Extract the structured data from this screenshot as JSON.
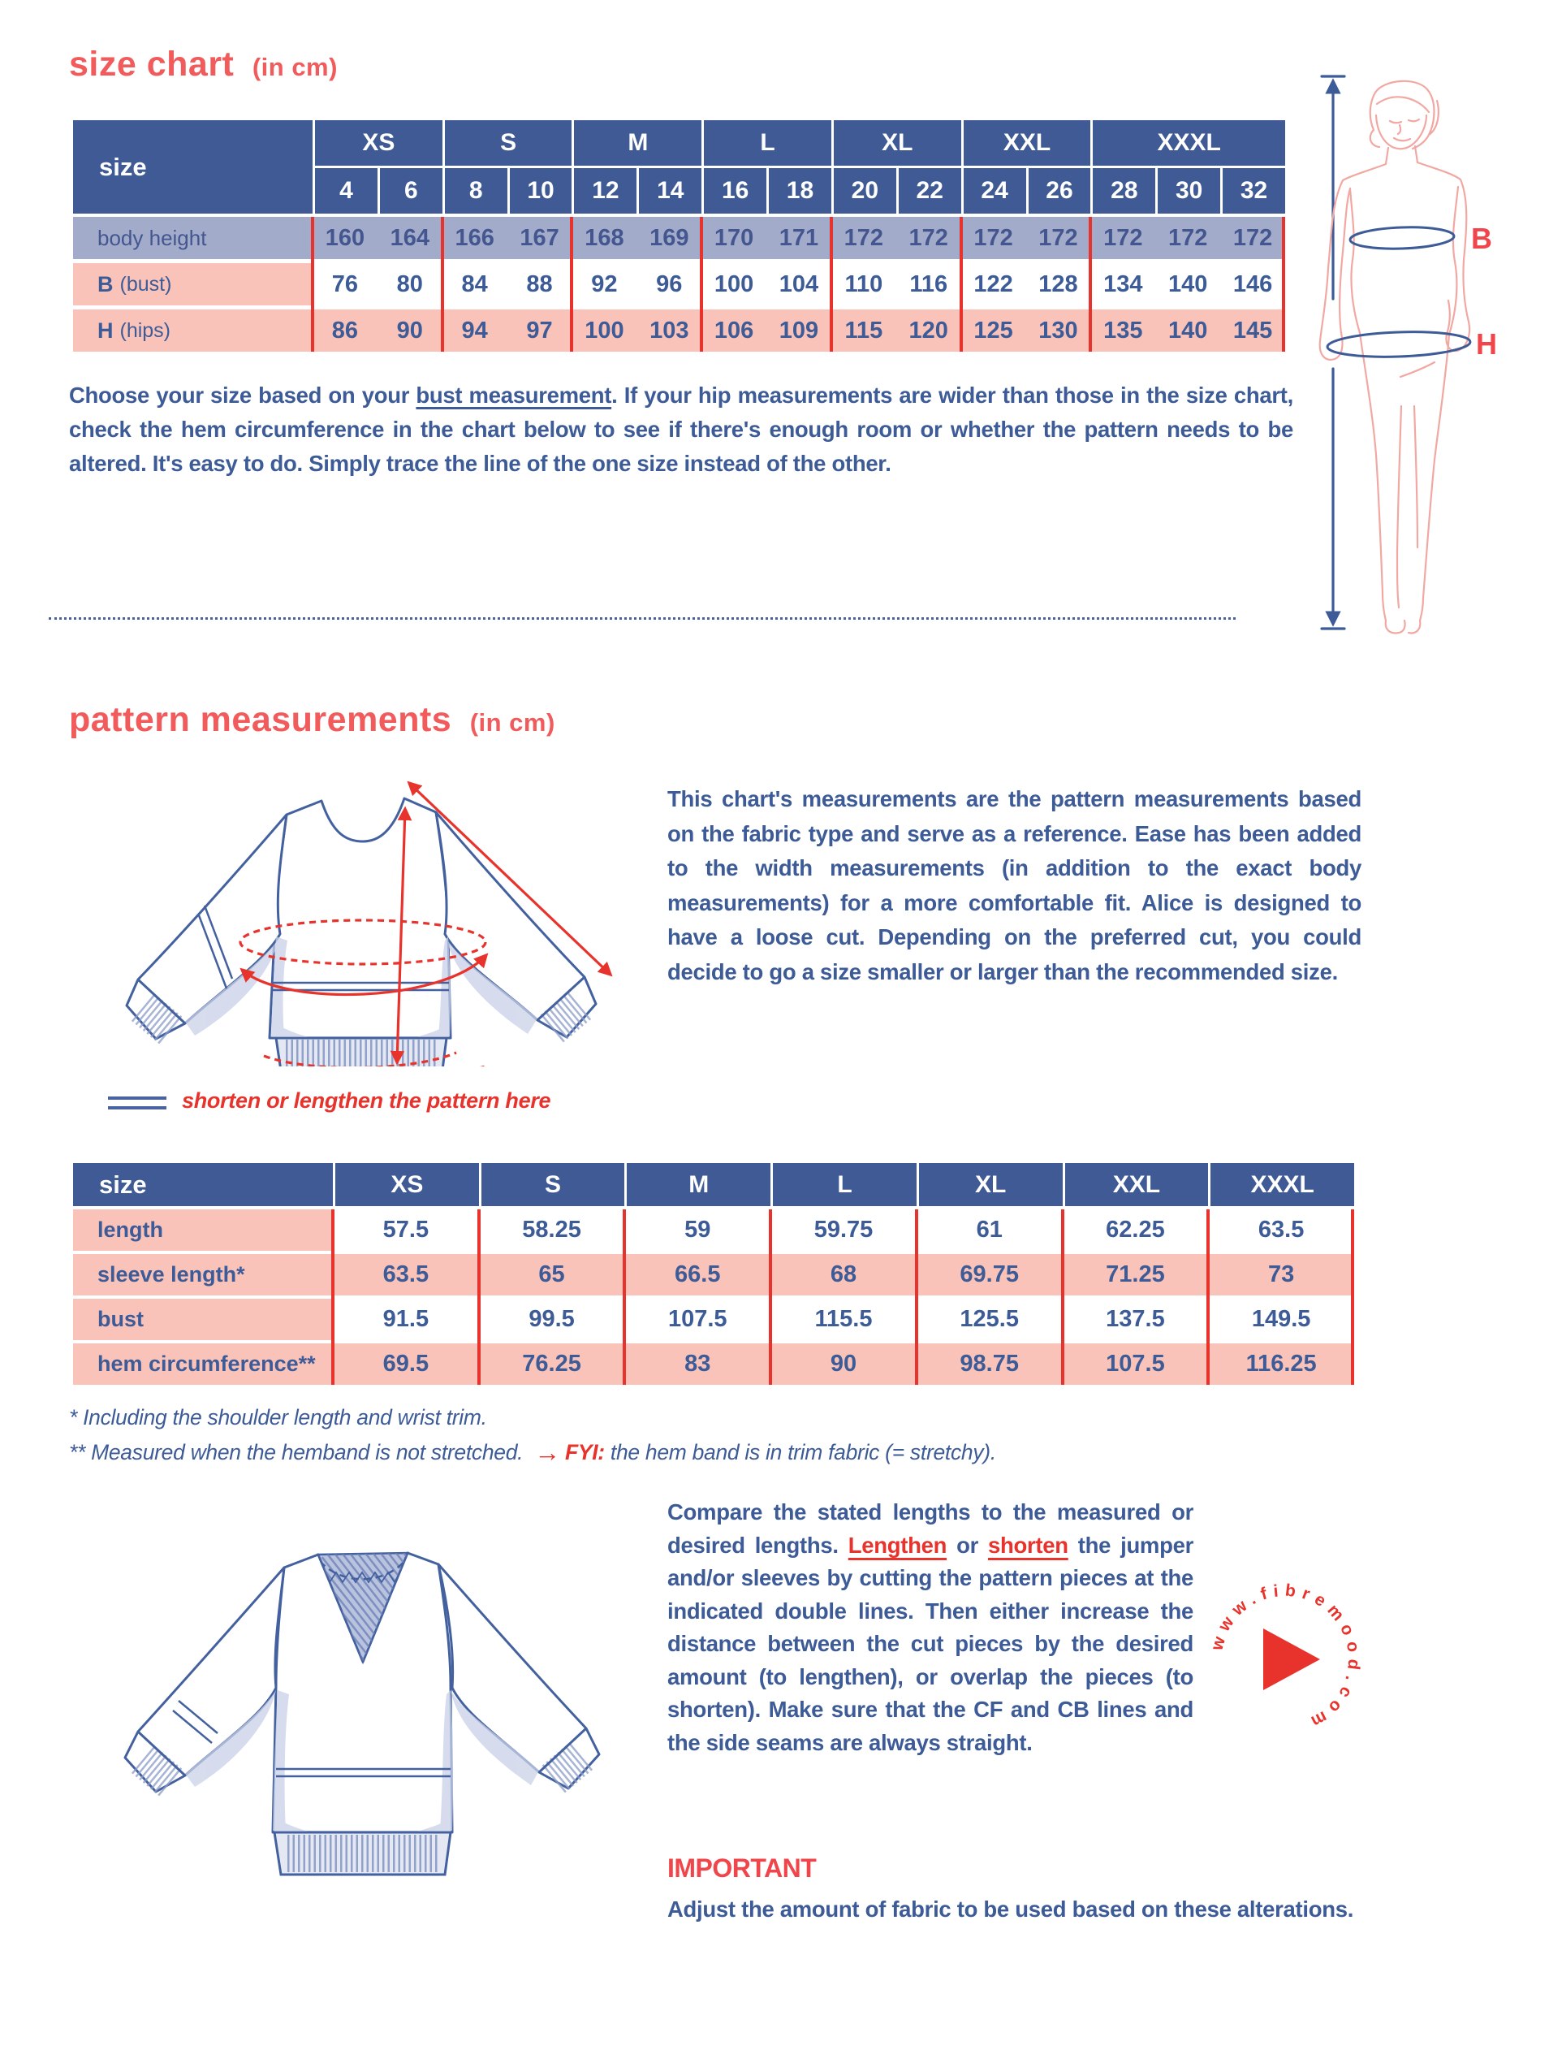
{
  "size_chart": {
    "title": "size chart",
    "unit_label": "(in cm)",
    "corner_label": "size",
    "groups": [
      {
        "label": "XS",
        "sizes": [
          "4",
          "6"
        ]
      },
      {
        "label": "S",
        "sizes": [
          "8",
          "10"
        ]
      },
      {
        "label": "M",
        "sizes": [
          "12",
          "14"
        ]
      },
      {
        "label": "L",
        "sizes": [
          "16",
          "18"
        ]
      },
      {
        "label": "XL",
        "sizes": [
          "20",
          "22"
        ]
      },
      {
        "label": "XXL",
        "sizes": [
          "24",
          "26"
        ]
      },
      {
        "label": "XXXL",
        "sizes": [
          "28",
          "30",
          "32"
        ]
      }
    ],
    "rows": [
      {
        "label": "body height",
        "tone": "lavender",
        "values": [
          "160",
          "164",
          "166",
          "167",
          "168",
          "169",
          "170",
          "171",
          "172",
          "172",
          "172",
          "172",
          "172",
          "172",
          "172"
        ]
      },
      {
        "label": "B (bust)",
        "tone": "pinklabel",
        "values": [
          "76",
          "80",
          "84",
          "88",
          "92",
          "96",
          "100",
          "104",
          "110",
          "116",
          "122",
          "128",
          "134",
          "140",
          "146"
        ]
      },
      {
        "label": "H (hips)",
        "tone": "pink",
        "values": [
          "86",
          "90",
          "94",
          "97",
          "100",
          "103",
          "106",
          "109",
          "115",
          "120",
          "125",
          "130",
          "135",
          "140",
          "145"
        ]
      }
    ],
    "intro": {
      "part1": "Choose your size based on your ",
      "underlined": "bust measurement",
      "part2": ". If your hip measurements are wider than those in the size chart, check the hem circumference in the chart below to see if there's enough room or whether the pattern needs to be altered. It's easy to do. Simply trace the line of the one size instead of the other."
    },
    "figure": {
      "bust_label": "B",
      "hips_label": "H"
    }
  },
  "pattern_measurements": {
    "title": "pattern measurements",
    "unit_label": "(in cm)",
    "corner_label": "size",
    "description": "This chart's measurements are the pattern measurements based on the fabric type and serve as a reference. Ease has been added to the width measurements (in addition to the exact body measurements) for a more comfortable fit. Alice is designed to have a loose cut. Depending on the preferred cut, you could decide to go a size smaller or larger than the recommended size.",
    "legend": "shorten or lengthen the pattern here",
    "columns": [
      "XS",
      "S",
      "M",
      "L",
      "XL",
      "XXL",
      "XXXL"
    ],
    "rows": [
      {
        "label": "length",
        "tone": "white",
        "values": [
          "57.5",
          "58.25",
          "59",
          "59.75",
          "61",
          "62.25",
          "63.5"
        ]
      },
      {
        "label": "sleeve length*",
        "tone": "pink",
        "values": [
          "63.5",
          "65",
          "66.5",
          "68",
          "69.75",
          "71.25",
          "73"
        ]
      },
      {
        "label": "bust",
        "tone": "white",
        "values": [
          "91.5",
          "99.5",
          "107.5",
          "115.5",
          "125.5",
          "137.5",
          "149.5"
        ]
      },
      {
        "label": "hem circumference**",
        "tone": "pink",
        "values": [
          "69.5",
          "76.25",
          "83",
          "90",
          "98.75",
          "107.5",
          "116.25"
        ]
      }
    ],
    "footnote1": "* Including the shoulder length and wrist trim.",
    "footnote2_part1": "** Measured when the hemband is not stretched.",
    "footnote2_arrow": "→",
    "footnote2_fyi": "FYI:",
    "footnote2_part2": " the hem band is in trim fabric (= stretchy)."
  },
  "alterations": {
    "part1": "Compare the stated lengths to the measured or desired lengths. ",
    "lengthen": "Lengthen",
    "part2": " or ",
    "shorten": "shorten",
    "part3": " the jumper and/or sleeves by cutting the pattern pieces at the indicated double lines. Then either increase the distance between the cut pieces by the desired amount (to lengthen), or overlap the pieces (to shorten). Make sure that the CF and CB lines and the side seams are always straight.",
    "important_title": "IMPORTANT",
    "important_text": "Adjust the amount of fabric to be used based on these alterations.",
    "logo_text": "www.fibremood.com"
  },
  "colors": {
    "header_blue": "#3f5a94",
    "lavender": "#a2abc9",
    "pink": "#fac3b9",
    "text_blue": "#3d5b97",
    "line_red": "#e8332c",
    "title_coral": "#f15b5b"
  }
}
